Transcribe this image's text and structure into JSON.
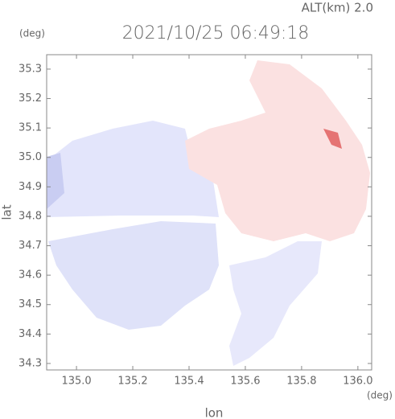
{
  "chart_data": {
    "type": "map",
    "title": "2021/10/25 06:49:18",
    "subtitle": "ALT(km) 2.0",
    "x_label": "lon",
    "y_label": "lat",
    "x_unit": "(deg)",
    "y_unit": "(deg)",
    "xlim": [
      134.894,
      136.049
    ],
    "ylim": [
      34.278,
      35.349
    ],
    "xticks": [
      {
        "value": 135,
        "label": "135.0"
      },
      135.2,
      135.4,
      135.6,
      135.8,
      {
        "value": 136,
        "label": "136.0"
      }
    ],
    "yticks": [
      34.3,
      34.4,
      34.5,
      34.6,
      34.7,
      34.8,
      34.9,
      {
        "value": 35,
        "label": "35.0"
      },
      35.1,
      35.2,
      35.3
    ]
  }
}
